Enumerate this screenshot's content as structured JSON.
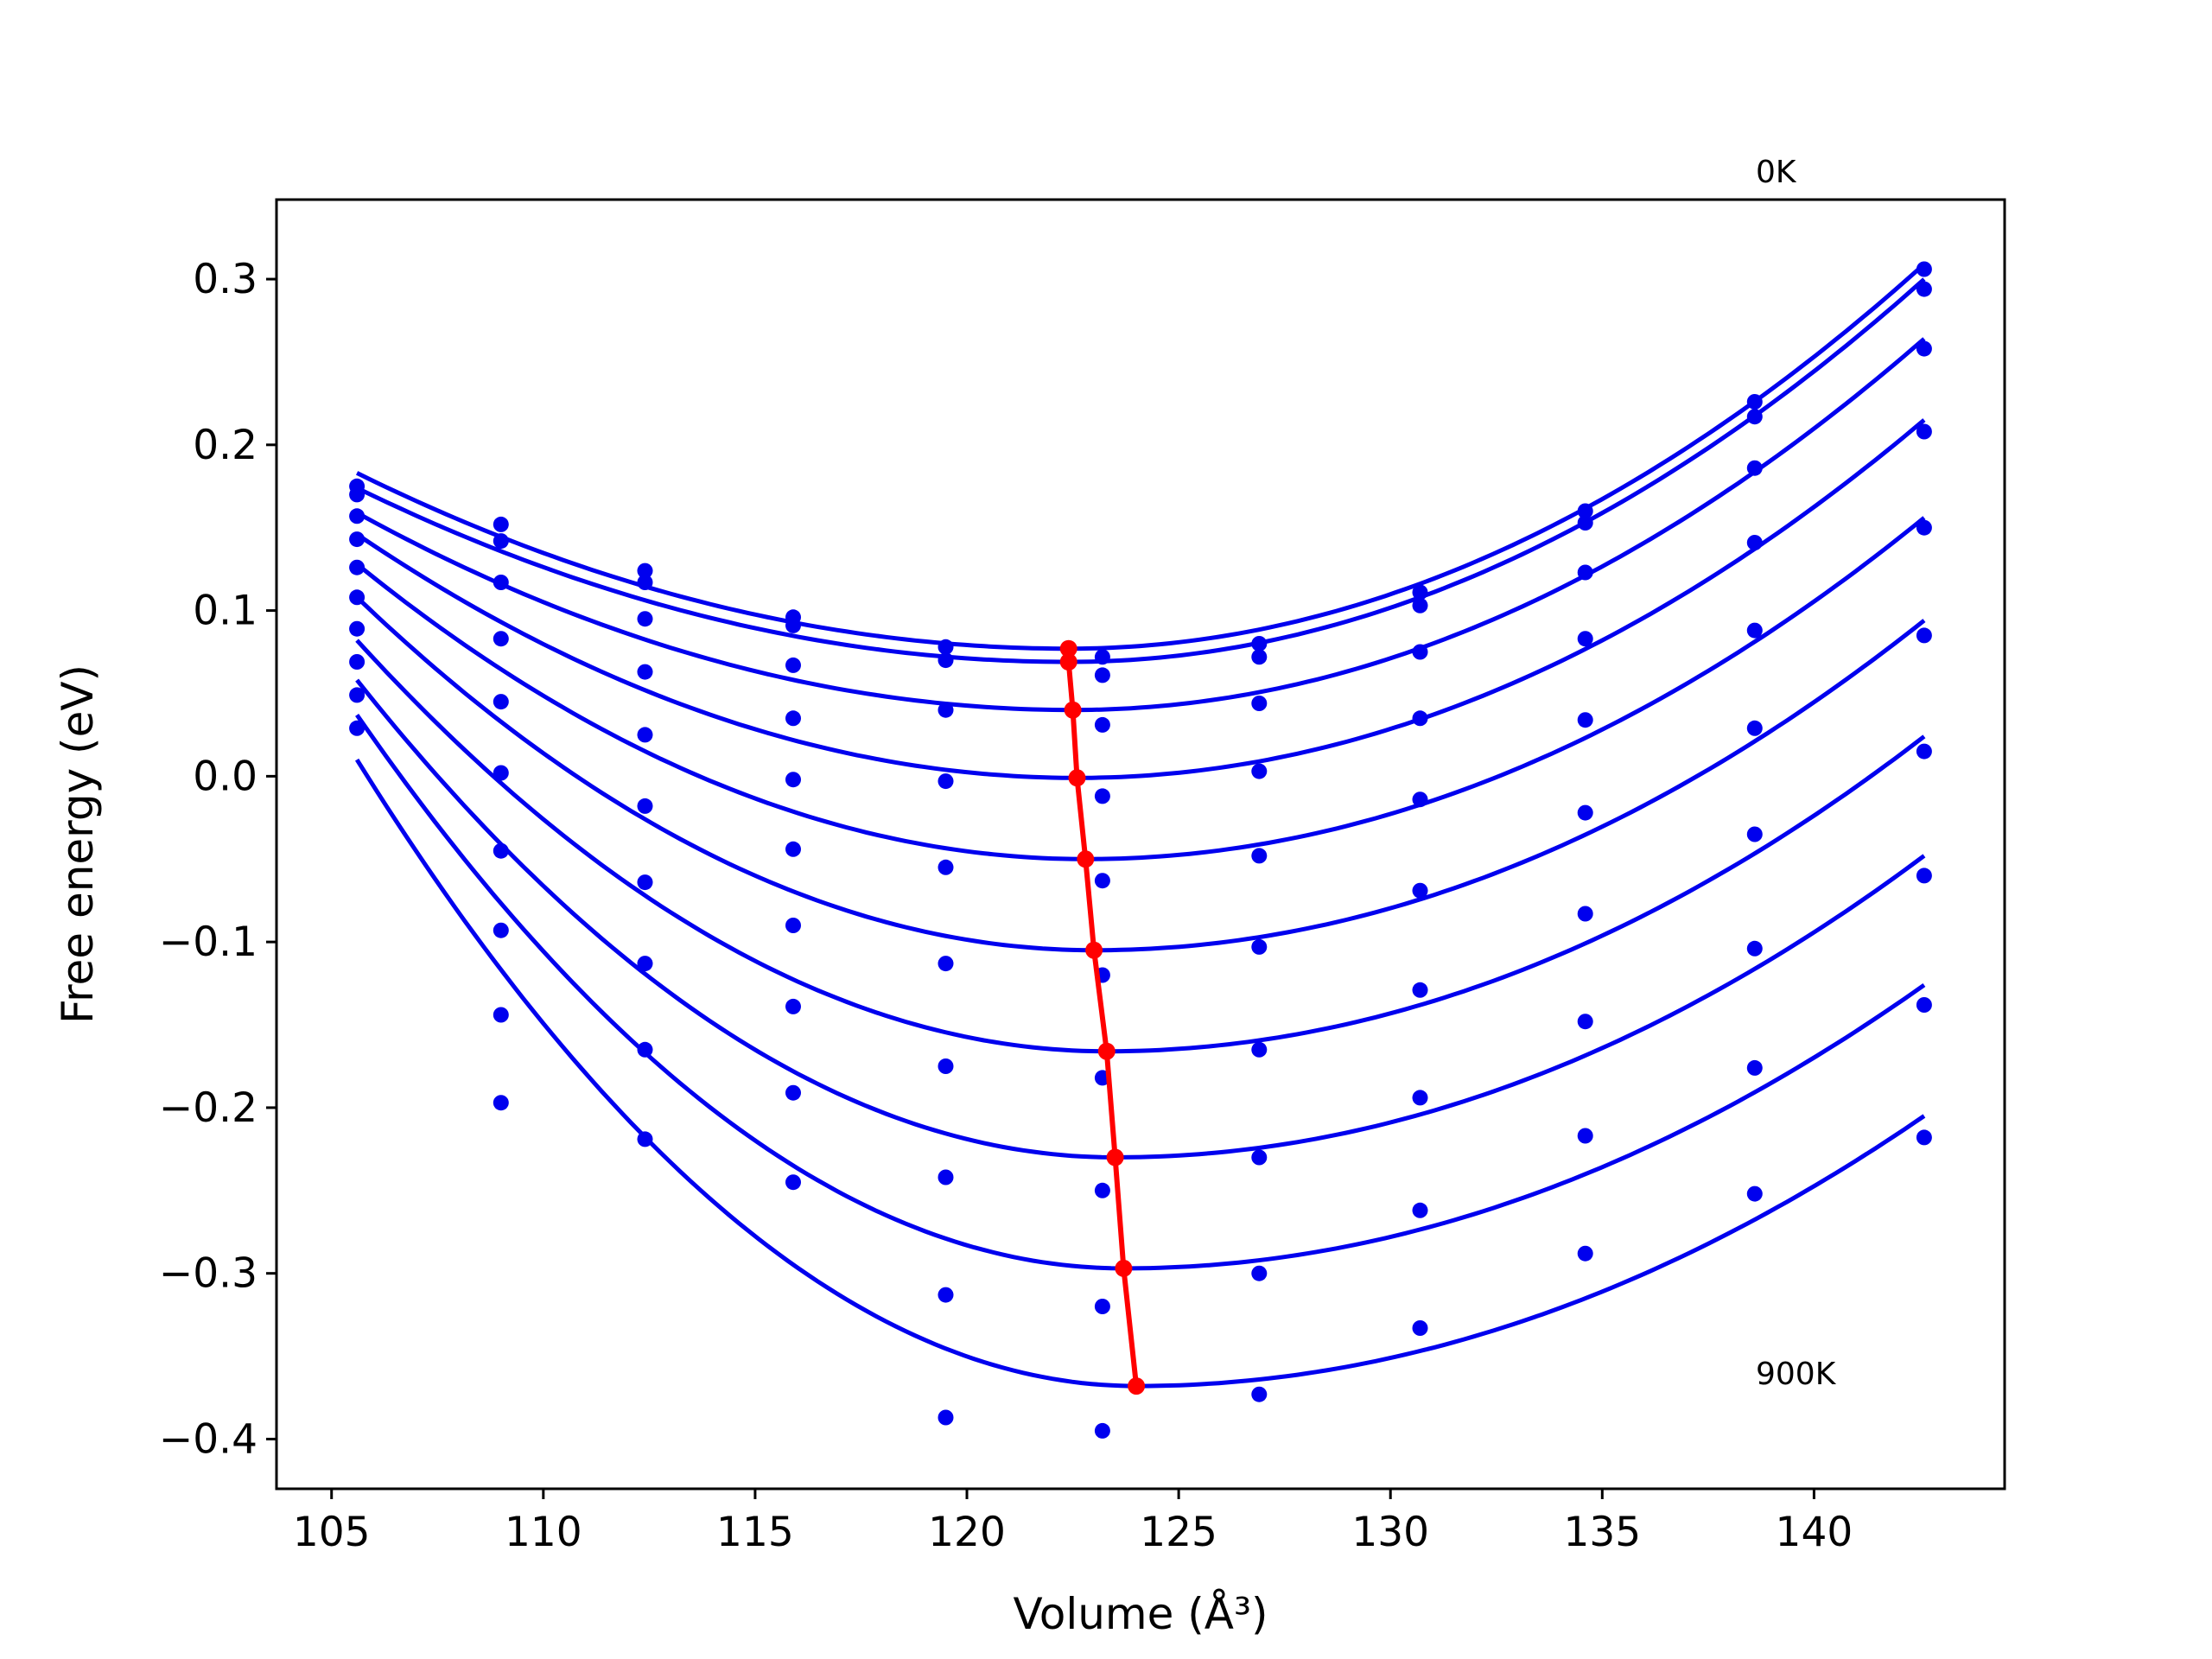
{
  "chart_data": {
    "type": "line",
    "title": "",
    "xlabel": "Volume (Å³)",
    "ylabel": "Free energy (eV)",
    "xlim": [
      103.7,
      144.5
    ],
    "ylim": [
      -0.43,
      0.348
    ],
    "xticks": [
      105,
      110,
      115,
      120,
      125,
      130,
      135,
      140
    ],
    "yticks": [
      -0.4,
      -0.3,
      -0.2,
      -0.1,
      0.0,
      0.1,
      0.2,
      0.3
    ],
    "ytick_labels": [
      "−0.4",
      "−0.3",
      "−0.2",
      "−0.1",
      "0.0",
      "0.1",
      "0.2",
      "0.3"
    ],
    "grid": false,
    "annotations": [
      {
        "text": "0K",
        "x": 138.5,
        "y": 0.357
      },
      {
        "text": "900K",
        "x": 138.5,
        "y": -0.361
      }
    ],
    "colors": {
      "isotherm": "#0000ee",
      "minimum_path": "#ff0000"
    },
    "x_points": [
      105.6,
      109.0,
      112.4,
      115.9,
      119.5,
      123.2,
      126.9,
      130.7,
      134.6,
      138.6,
      142.6
    ],
    "series": [
      {
        "min_x": 122.4,
        "min_y": 0.077,
        "curve_left": 0.183,
        "curve_right": 0.309,
        "points": [
          0.175,
          0.152,
          0.124,
          0.096,
          0.078,
          0.072,
          0.08,
          0.111,
          0.16,
          0.226,
          0.306
        ]
      },
      {
        "min_x": 122.4,
        "min_y": 0.069,
        "curve_left": 0.174,
        "curve_right": 0.3,
        "points": [
          0.17,
          0.142,
          0.117,
          0.091,
          0.07,
          0.061,
          0.072,
          0.103,
          0.153,
          0.217,
          0.294
        ]
      },
      {
        "min_x": 122.5,
        "min_y": 0.04,
        "curve_left": 0.159,
        "curve_right": 0.264,
        "points": [
          0.157,
          0.117,
          0.095,
          0.067,
          0.04,
          0.031,
          0.044,
          0.075,
          0.123,
          0.186,
          0.258
        ]
      },
      {
        "min_x": 122.6,
        "min_y": -0.001,
        "curve_left": 0.146,
        "curve_right": 0.215,
        "points": [
          0.143,
          0.083,
          0.063,
          0.035,
          -0.003,
          -0.012,
          0.003,
          0.035,
          0.083,
          0.141,
          0.208
        ]
      },
      {
        "min_x": 122.8,
        "min_y": -0.05,
        "curve_left": 0.128,
        "curve_right": 0.156,
        "points": [
          0.126,
          0.045,
          0.025,
          -0.002,
          -0.055,
          -0.063,
          -0.048,
          -0.014,
          0.034,
          0.088,
          0.15
        ]
      },
      {
        "min_x": 123.0,
        "min_y": -0.105,
        "curve_left": 0.108,
        "curve_right": 0.094,
        "points": [
          0.108,
          0.002,
          -0.018,
          -0.044,
          -0.113,
          -0.12,
          -0.103,
          -0.069,
          -0.022,
          0.029,
          0.085
        ]
      },
      {
        "min_x": 123.3,
        "min_y": -0.166,
        "curve_left": 0.082,
        "curve_right": 0.024,
        "points": [
          0.089,
          -0.045,
          -0.064,
          -0.09,
          -0.175,
          -0.182,
          -0.165,
          -0.129,
          -0.083,
          -0.035,
          0.015
        ]
      },
      {
        "min_x": 123.5,
        "min_y": -0.23,
        "curve_left": 0.058,
        "curve_right": -0.048,
        "points": [
          0.069,
          -0.093,
          -0.113,
          -0.139,
          -0.242,
          -0.25,
          -0.23,
          -0.194,
          -0.148,
          -0.104,
          -0.06
        ]
      },
      {
        "min_x": 123.7,
        "min_y": -0.297,
        "curve_left": 0.037,
        "curve_right": -0.126,
        "points": [
          0.049,
          -0.144,
          -0.165,
          -0.191,
          -0.313,
          -0.32,
          -0.3,
          -0.262,
          -0.217,
          -0.176,
          -0.138
        ]
      },
      {
        "min_x": 124.0,
        "min_y": -0.368,
        "curve_left": 0.01,
        "curve_right": -0.205,
        "points": [
          0.029,
          -0.197,
          -0.219,
          -0.245,
          -0.387,
          -0.395,
          -0.373,
          -0.333,
          -0.288,
          -0.252,
          -0.218
        ]
      }
    ]
  }
}
